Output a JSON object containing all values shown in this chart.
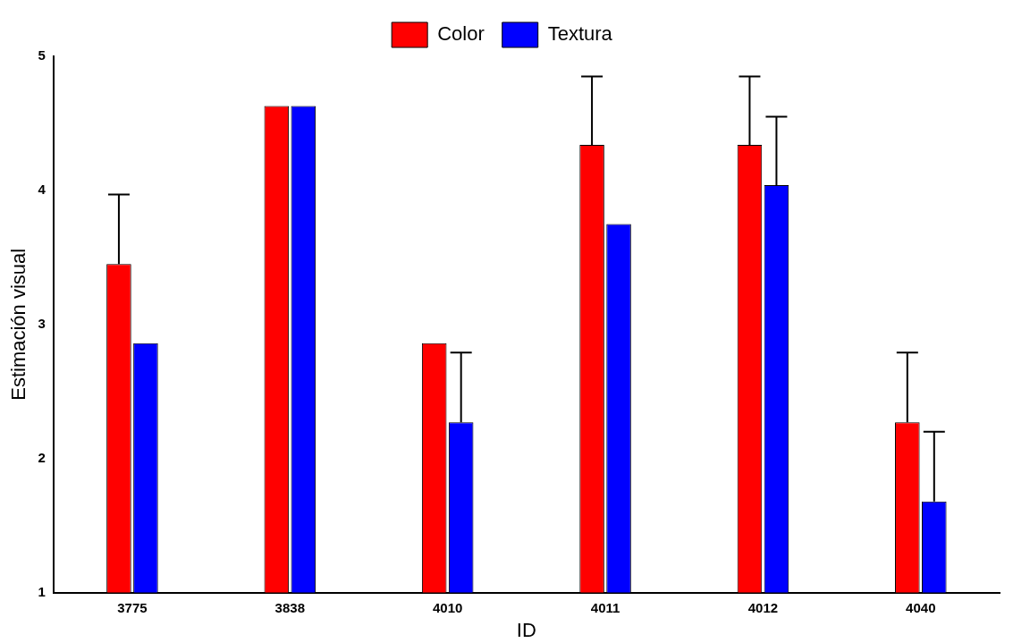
{
  "chart_data": {
    "type": "bar",
    "xlabel": "ID",
    "ylabel": "Estimación visual",
    "categories": [
      "3775",
      "3838",
      "4010",
      "4011",
      "4012",
      "4040"
    ],
    "series": [
      {
        "name": "Color",
        "color": "#ff0000",
        "values": [
          3.45,
          4.63,
          2.86,
          4.34,
          4.34,
          2.27
        ],
        "errors": [
          [
            3.45,
            3.97
          ],
          null,
          null,
          [
            4.34,
            4.85
          ],
          [
            4.34,
            4.85
          ],
          [
            2.27,
            2.79
          ]
        ]
      },
      {
        "name": "Textura",
        "color": "#0000ff",
        "values": [
          2.86,
          4.63,
          2.27,
          3.75,
          4.04,
          1.68
        ],
        "errors": [
          null,
          null,
          [
            2.27,
            2.79
          ],
          null,
          [
            4.04,
            4.55
          ],
          [
            1.68,
            2.2
          ]
        ]
      }
    ],
    "ylim": [
      1,
      5
    ],
    "yticks": [
      1,
      2,
      3,
      4,
      5
    ],
    "grid": false,
    "legend": "top"
  }
}
